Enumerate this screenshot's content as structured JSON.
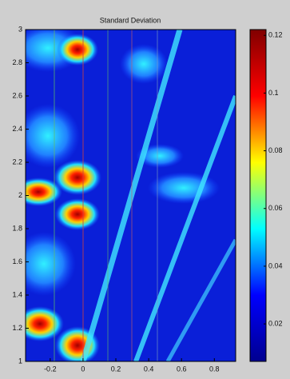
{
  "chart_data": {
    "type": "heatmap",
    "title": "Standard Deviation",
    "xlim": [
      -0.35,
      0.93
    ],
    "xticks": [
      -0.2,
      0,
      0.2,
      0.4,
      0.6,
      0.8
    ],
    "ylim": [
      1,
      3
    ],
    "yticks": [
      1,
      1.2,
      1.4,
      1.6,
      1.8,
      2,
      2.2,
      2.4,
      2.6,
      2.8,
      3
    ],
    "clim": [
      0.007,
      0.122
    ],
    "cticks": [
      0.02,
      0.04,
      0.06,
      0.08,
      0.1,
      0.12
    ],
    "colormap": [
      "#00008f",
      "#0000ff",
      "#00ffff",
      "#ffff00",
      "#ff0000",
      "#800000"
    ]
  }
}
